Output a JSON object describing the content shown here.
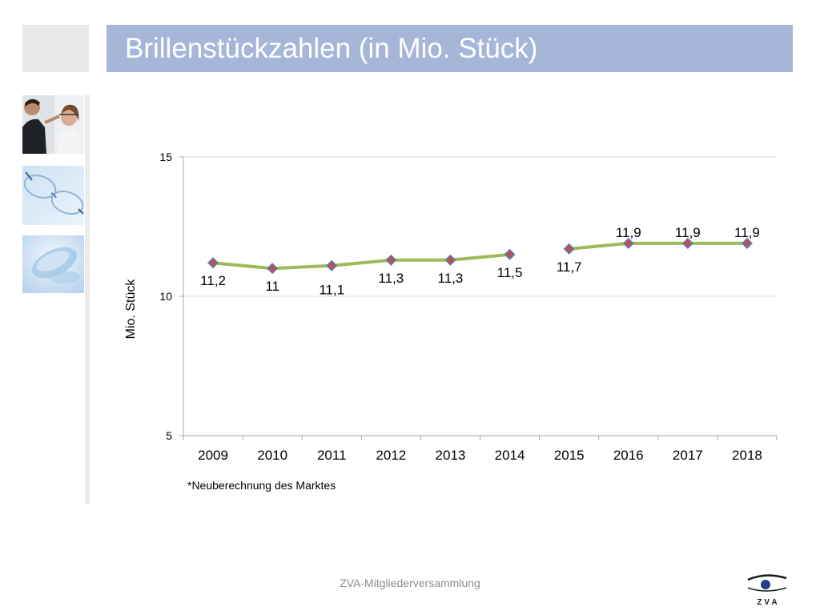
{
  "slide": {
    "title": "Brillenstückzahlen (in Mio. Stück)",
    "footer": "ZVA-Mitgliederversammlung",
    "footnote": "*Neuberechnung des Marktes",
    "logo_text": "Z V A"
  },
  "colors": {
    "title_bar": "#a6b6d8",
    "line": "#9bbb59",
    "marker_fill": "#c0504d",
    "marker_stroke": "#4f81bd",
    "grid": "#d9d9d9",
    "axis": "#a6a6a6"
  },
  "chart_data": {
    "type": "line",
    "title": "",
    "xlabel": "",
    "ylabel": "Mio. Stück",
    "categories": [
      "2009",
      "2010",
      "2011",
      "2012",
      "2013",
      "2014",
      "2015",
      "2016",
      "2017",
      "2018"
    ],
    "series": [
      {
        "values": [
          11.2,
          11.0,
          11.1,
          11.3,
          11.3,
          11.5,
          11.7,
          11.9,
          11.9,
          11.9
        ]
      }
    ],
    "data_labels": [
      "11,2",
      "11",
      "11,1",
      "11,3",
      "11,3",
      "11,5",
      "11,7",
      "11,9",
      "11,9",
      "11,9"
    ],
    "line_break_after_category": "2014",
    "ylim": [
      5,
      15
    ],
    "yticks": [
      5,
      10,
      15
    ],
    "grid": true,
    "legend": "none"
  }
}
